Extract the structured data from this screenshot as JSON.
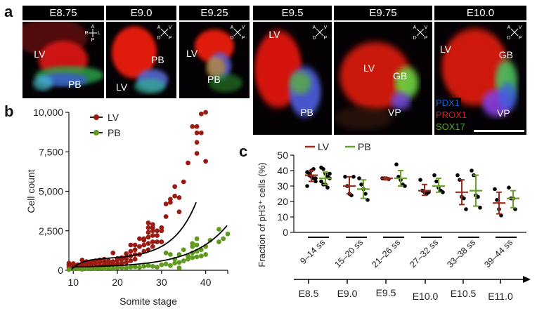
{
  "panels": {
    "a": {
      "letter": "a",
      "images": [
        {
          "stage": "E8.75",
          "labels": [
            "LV",
            "PB"
          ],
          "axes": {
            "top": "A",
            "left": "R",
            "right": "L",
            "bottom": "P"
          }
        },
        {
          "stage": "E9.0",
          "labels": [
            "LV",
            "PB"
          ],
          "axes": {
            "tl": "A",
            "tr": "V",
            "bl": "D",
            "br": "P"
          }
        },
        {
          "stage": "E9.25",
          "labels": [
            "LV",
            "PB"
          ],
          "axes": {
            "tl": "A",
            "tr": "V",
            "bl": "D",
            "br": "P"
          }
        },
        {
          "stage": "E9.5",
          "labels": [
            "LV",
            "PB"
          ],
          "axes": {
            "tl": "A",
            "tr": "V",
            "bl": "D",
            "br": "P"
          }
        },
        {
          "stage": "E9.75",
          "labels": [
            "LV",
            "GB",
            "VP"
          ],
          "axes": {
            "tl": "A",
            "tr": "V",
            "bl": "D",
            "br": "P"
          }
        },
        {
          "stage": "E10.0",
          "labels": [
            "LV",
            "GB",
            "VP"
          ],
          "axes": {
            "tl": "A",
            "tr": "V",
            "bl": "D",
            "br": "P"
          }
        }
      ],
      "channels": [
        {
          "name": "PDX1",
          "color": "#1f5fd0"
        },
        {
          "name": "PROX1",
          "color": "#d42020"
        },
        {
          "name": "SOX17",
          "color": "#5aa82a"
        }
      ]
    },
    "b": {
      "letter": "b"
    },
    "c": {
      "letter": "c"
    }
  },
  "chart_data": [
    {
      "id": "b",
      "type": "scatter",
      "title": "",
      "xlabel": "Somite stage",
      "ylabel": "Cell count",
      "xlim": [
        9,
        45
      ],
      "ylim": [
        0,
        10000
      ],
      "xticks": [
        10,
        20,
        30,
        40,
        45
      ],
      "xtick_labels": [
        "10",
        "20",
        "30",
        "40",
        ""
      ],
      "yticks": [
        0,
        2500,
        5000,
        7500,
        10000
      ],
      "ytick_labels": [
        "0",
        "2,500",
        "5,000",
        "7,500",
        "10,000"
      ],
      "legend": {
        "position": "top-left",
        "entries": [
          {
            "name": "LV",
            "color": "#9b1b12"
          },
          {
            "name": "PB",
            "color": "#5f9a1e"
          }
        ]
      },
      "series": [
        {
          "name": "LV",
          "color": "#9b1b12",
          "points": [
            [
              9,
              200
            ],
            [
              9,
              350
            ],
            [
              9,
              450
            ],
            [
              10,
              150
            ],
            [
              10,
              300
            ],
            [
              10,
              420
            ],
            [
              11,
              200
            ],
            [
              11,
              350
            ],
            [
              12,
              250
            ],
            [
              12,
              400
            ],
            [
              12,
              650
            ],
            [
              13,
              300
            ],
            [
              13,
              450
            ],
            [
              13,
              550
            ],
            [
              14,
              200
            ],
            [
              14,
              400
            ],
            [
              14,
              550
            ],
            [
              15,
              250
            ],
            [
              15,
              420
            ],
            [
              15,
              600
            ],
            [
              16,
              300
            ],
            [
              16,
              500
            ],
            [
              16,
              650
            ],
            [
              17,
              350
            ],
            [
              17,
              500
            ],
            [
              17,
              700
            ],
            [
              18,
              300
            ],
            [
              18,
              450
            ],
            [
              18,
              600
            ],
            [
              19,
              350
            ],
            [
              19,
              550
            ],
            [
              19,
              1100
            ],
            [
              20,
              400
            ],
            [
              20,
              600
            ],
            [
              20,
              750
            ],
            [
              21,
              450
            ],
            [
              21,
              700
            ],
            [
              21,
              800
            ],
            [
              22,
              500
            ],
            [
              22,
              750
            ],
            [
              22,
              1050
            ],
            [
              23,
              600
            ],
            [
              23,
              900
            ],
            [
              23,
              1200
            ],
            [
              23,
              1600
            ],
            [
              24,
              700
            ],
            [
              24,
              1000
            ],
            [
              24,
              1300
            ],
            [
              24,
              1600
            ],
            [
              25,
              1000
            ],
            [
              25,
              1500
            ],
            [
              25,
              2000
            ],
            [
              26,
              1200
            ],
            [
              26,
              1600
            ],
            [
              26,
              1900
            ],
            [
              26,
              2000
            ],
            [
              27,
              1300
            ],
            [
              27,
              1700
            ],
            [
              27,
              2100
            ],
            [
              27,
              2400
            ],
            [
              27,
              2700
            ],
            [
              27,
              3000
            ],
            [
              28,
              1500
            ],
            [
              28,
              1800
            ],
            [
              28,
              2200
            ],
            [
              28,
              2500
            ],
            [
              28,
              2700
            ],
            [
              28,
              2900
            ],
            [
              29,
              1800
            ],
            [
              29,
              2200
            ],
            [
              29,
              2500
            ],
            [
              30,
              1800
            ],
            [
              30,
              2500
            ],
            [
              30,
              2700
            ],
            [
              31,
              3400
            ],
            [
              31,
              4200
            ],
            [
              32,
              4300
            ],
            [
              32,
              4500
            ],
            [
              33,
              4700
            ],
            [
              33,
              5300
            ],
            [
              34,
              3700
            ],
            [
              34,
              4600
            ],
            [
              35,
              5600
            ],
            [
              36,
              6800
            ],
            [
              37,
              9100
            ],
            [
              38,
              9100
            ],
            [
              38,
              8700
            ],
            [
              38,
              8100
            ],
            [
              38,
              7400
            ],
            [
              39,
              9900
            ],
            [
              39,
              8700
            ],
            [
              40,
              10000
            ],
            [
              40,
              6900
            ]
          ],
          "fit": "exponential"
        },
        {
          "name": "PB",
          "color": "#5f9a1e",
          "points": [
            [
              9,
              50
            ],
            [
              10,
              80
            ],
            [
              11,
              100
            ],
            [
              12,
              60
            ],
            [
              13,
              120
            ],
            [
              14,
              90
            ],
            [
              15,
              100
            ],
            [
              16,
              140
            ],
            [
              17,
              120
            ],
            [
              18,
              150
            ],
            [
              19,
              100
            ],
            [
              20,
              160
            ],
            [
              21,
              180
            ],
            [
              22,
              150
            ],
            [
              23,
              200
            ],
            [
              24,
              220
            ],
            [
              25,
              180
            ],
            [
              26,
              250
            ],
            [
              27,
              300
            ],
            [
              28,
              250
            ],
            [
              29,
              200
            ],
            [
              30,
              350
            ],
            [
              31,
              400
            ],
            [
              31,
              1100
            ],
            [
              32,
              300
            ],
            [
              32,
              1000
            ],
            [
              33,
              450
            ],
            [
              33,
              700
            ],
            [
              34,
              500
            ],
            [
              34,
              1000
            ],
            [
              34,
              150
            ],
            [
              35,
              600
            ],
            [
              35,
              1300
            ],
            [
              36,
              700
            ],
            [
              36,
              900
            ],
            [
              37,
              800
            ],
            [
              37,
              1100
            ],
            [
              37,
              1500
            ],
            [
              37,
              1700
            ],
            [
              38,
              850
            ],
            [
              38,
              1200
            ],
            [
              38,
              1600
            ],
            [
              38,
              2000
            ],
            [
              39,
              900
            ],
            [
              39,
              1300
            ],
            [
              40,
              1000
            ],
            [
              40,
              1500
            ],
            [
              41,
              1900
            ],
            [
              43,
              1800
            ],
            [
              43,
              2600
            ],
            [
              44,
              2000
            ],
            [
              45,
              2300
            ]
          ],
          "fit": "exponential"
        }
      ]
    },
    {
      "id": "c",
      "type": "scatter",
      "title": "",
      "ylabel": "Fraction of pH3⁺ cells (%)",
      "ylim": [
        0,
        50
      ],
      "yticks": [
        0,
        10,
        20,
        30,
        40,
        50
      ],
      "categories": [
        "9–14 ss",
        "15–20 ss",
        "21–26 ss",
        "27–32 ss",
        "33–38 ss",
        "39–44 ss"
      ],
      "embryonic_axis": [
        "E8.5",
        "E9.0",
        "E9.5",
        "E10.0",
        "E10.5",
        "E11.0"
      ],
      "legend": {
        "position": "top-left",
        "entries": [
          {
            "name": "LV",
            "color": "#9b2a1e"
          },
          {
            "name": "PB",
            "color": "#6aa029"
          }
        ]
      },
      "series": [
        {
          "name": "LV",
          "color": "#9b2a1e",
          "mean": [
            37,
            30,
            35,
            27,
            26,
            19
          ],
          "sd_low": [
            33,
            25,
            34,
            24,
            18,
            12
          ],
          "sd_high": [
            40,
            36,
            35.5,
            31,
            34,
            26
          ],
          "points": [
            [
              39,
              38,
              36,
              35,
              33,
              30,
              37,
              40,
              41,
              35
            ],
            [
              36,
              30,
              25,
              24,
              36
            ],
            [
              35,
              35,
              35,
              34.5
            ],
            [
              34,
              27,
              26,
              25,
              26
            ],
            [
              37,
              34,
              23,
              22,
              15
            ],
            [
              28,
              21,
              15,
              11
            ]
          ]
        },
        {
          "name": "PB",
          "color": "#6aa029",
          "mean": [
            35,
            28,
            35,
            30,
            27,
            22
          ],
          "sd_low": [
            31,
            22,
            30,
            26,
            17,
            16
          ],
          "sd_high": [
            39,
            34,
            40,
            35,
            37,
            27
          ],
          "points": [
            [
              42,
              41,
              38,
              36,
              35,
              33,
              31,
              31,
              29,
              38
            ],
            [
              35,
              31,
              28,
              25,
              21
            ],
            [
              44,
              36,
              34,
              31,
              30
            ],
            [
              37,
              33,
              29,
              27,
              26
            ],
            [
              40,
              37,
              24,
              23,
              16
            ],
            [
              29,
              22,
              22,
              15
            ]
          ]
        }
      ]
    }
  ]
}
